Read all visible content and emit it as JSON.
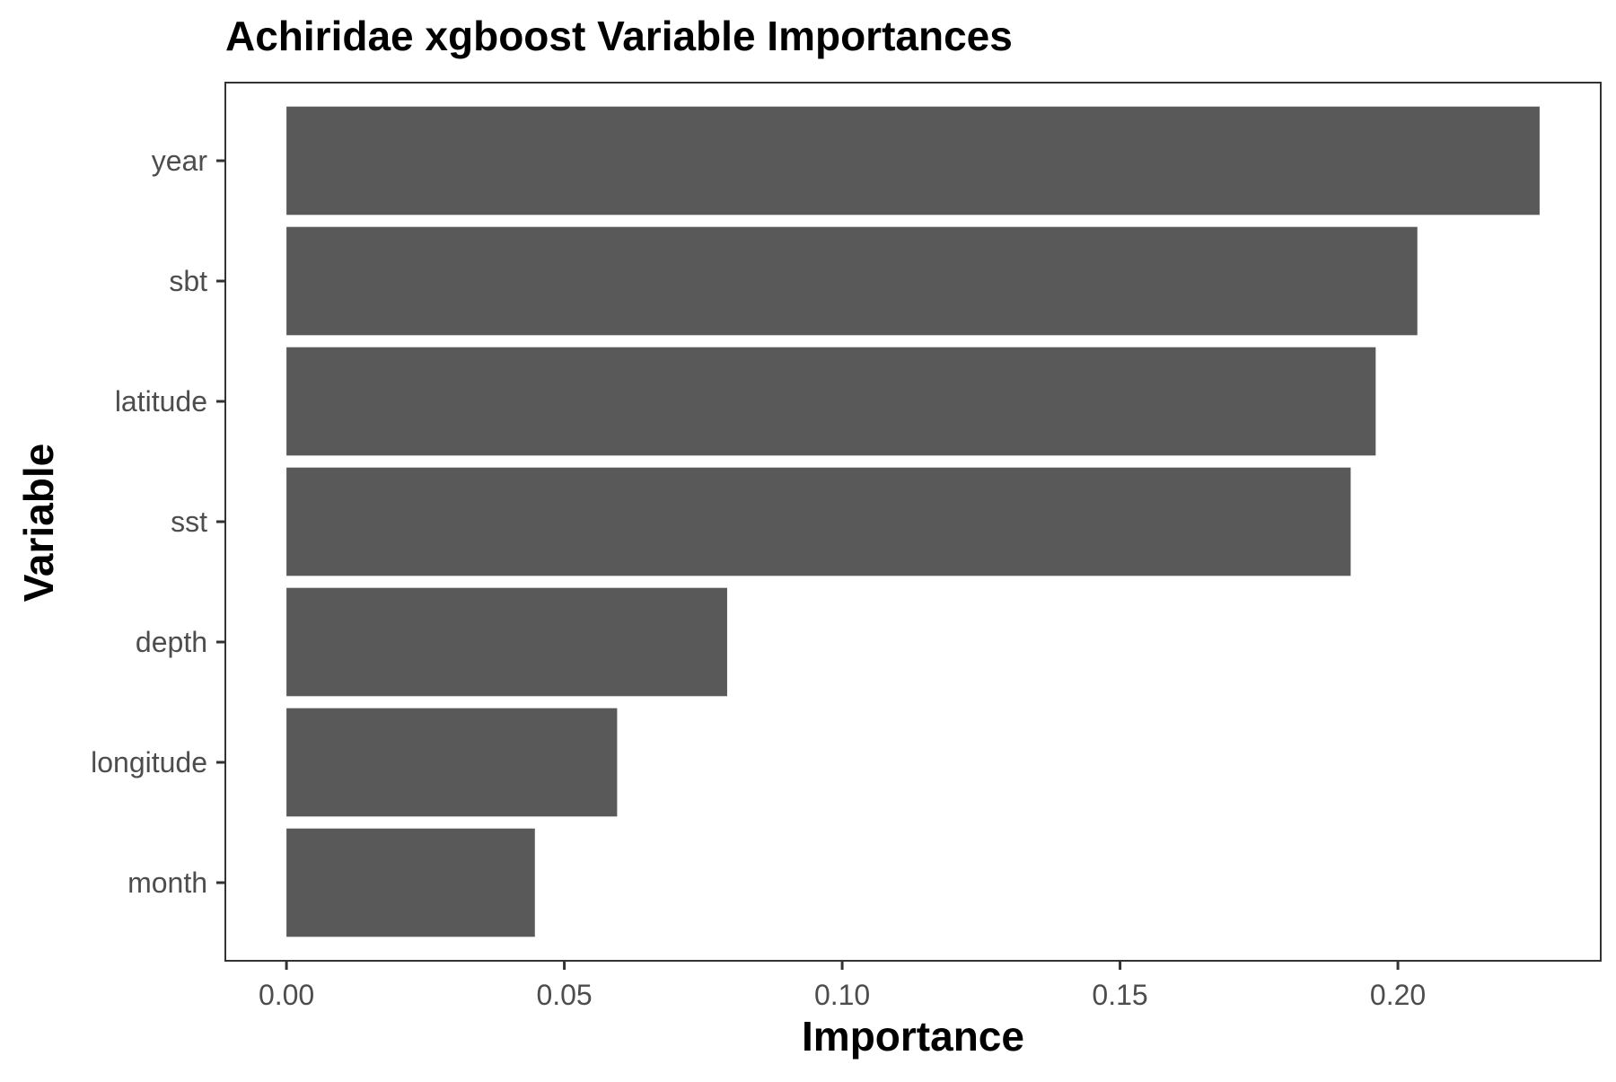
{
  "colors": {
    "bar_fill": "#595959",
    "panel_border": "#333333",
    "tick_text": "#4d4d4d",
    "background": "#ffffff"
  },
  "chart_data": {
    "type": "bar",
    "orientation": "horizontal",
    "title": "Achiridae xgboost Variable Importances",
    "xlabel": "Importance",
    "ylabel": "Variable",
    "categories": [
      "year",
      "sbt",
      "latitude",
      "sst",
      "depth",
      "longitude",
      "month"
    ],
    "values": [
      0.2255,
      0.2035,
      0.196,
      0.1915,
      0.0793,
      0.0595,
      0.0447
    ],
    "xlim": [
      -0.011,
      0.2365
    ],
    "xticks": [
      0.0,
      0.05,
      0.1,
      0.15,
      0.2
    ],
    "xtick_labels": [
      "0.00",
      "0.05",
      "0.10",
      "0.15",
      "0.20"
    ],
    "grid": false,
    "legend": "none"
  }
}
